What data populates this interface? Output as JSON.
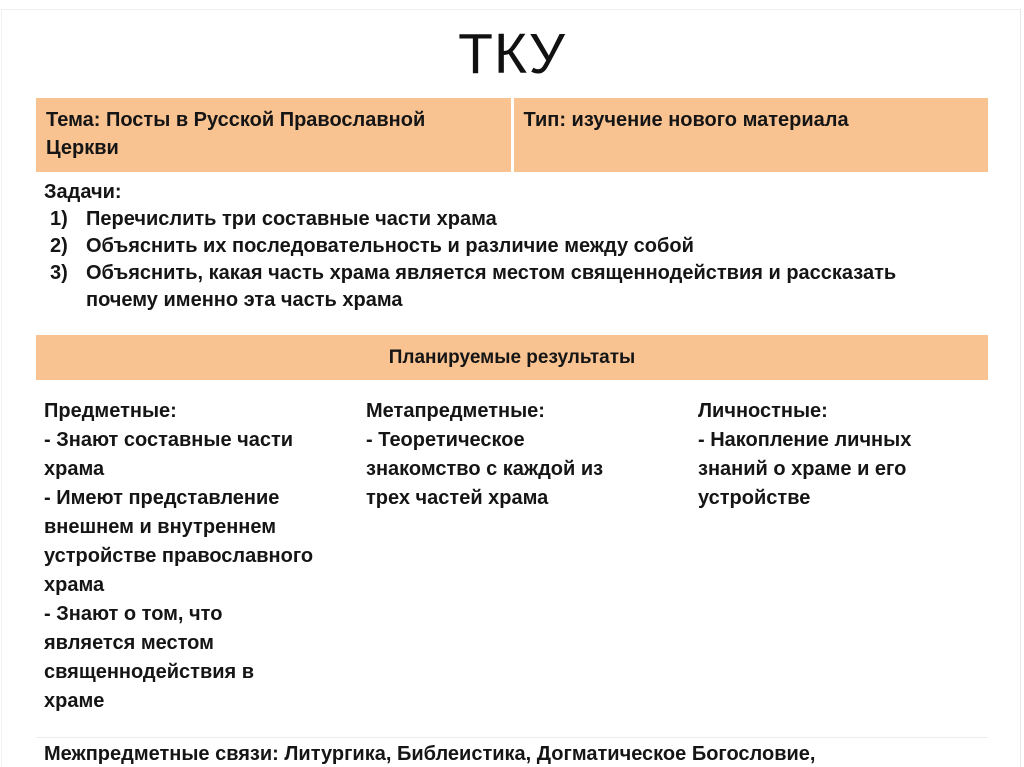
{
  "slide": {
    "title": "ТКУ",
    "header_row": {
      "topic": "Тема: Посты в Русской Православной\nЦеркви",
      "type": "Тип: изучение нового материала"
    },
    "tasks": {
      "label": "Задачи:",
      "items": [
        {
          "num": "1)",
          "text": "Перечислить три составные части храма"
        },
        {
          "num": "2)",
          "text": "Объяснить их последовательность и различие между собой"
        },
        {
          "num": "3)",
          "text": "Объяснить, какая часть храма является местом священнодействия и рассказать\nпочему именно эта часть храма"
        }
      ]
    },
    "results": {
      "header": "Планируемые результаты",
      "columns": [
        {
          "title": "Предметные:",
          "body": "- Знают составные части\nхрама\n- Имеют представление\nвнешнем и внутреннем\nустройстве православного\nхрама\n- Знают о том, что\nявляется местом\nсвященнодействия в\nхраме"
        },
        {
          "title": "Метапредметные:",
          "body": "- Теоретическое\nзнакомство с каждой из\nтрех частей храма"
        },
        {
          "title": "Личностные:",
          "body": "- Накопление личных\nзнаний о храме и его\nустройстве"
        }
      ]
    },
    "footer": {
      "text": "Межпредметные связи: Литургика, Библеистика, Догматическое Богословие,"
    },
    "colors": {
      "accent": "#F8C291",
      "text": "#151515"
    }
  }
}
